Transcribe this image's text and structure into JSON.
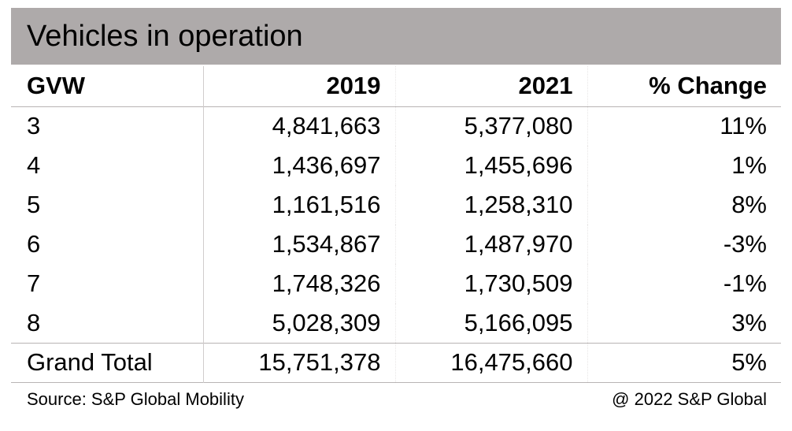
{
  "chart_data": {
    "type": "table",
    "title": "Vehicles in operation",
    "columns": [
      "GVW",
      "2019",
      "2021",
      "% Change"
    ],
    "rows": [
      {
        "gvw": "3",
        "y2019": "4,841,663",
        "y2021": "5,377,080",
        "change": "11%"
      },
      {
        "gvw": "4",
        "y2019": "1,436,697",
        "y2021": "1,455,696",
        "change": "1%"
      },
      {
        "gvw": "5",
        "y2019": "1,161,516",
        "y2021": "1,258,310",
        "change": "8%"
      },
      {
        "gvw": "6",
        "y2019": "1,534,867",
        "y2021": "1,487,970",
        "change": "-3%"
      },
      {
        "gvw": "7",
        "y2019": "1,748,326",
        "y2021": "1,730,509",
        "change": "-1%"
      },
      {
        "gvw": "8",
        "y2019": "5,028,309",
        "y2021": "5,166,095",
        "change": "3%"
      }
    ],
    "total": {
      "label": "Grand Total",
      "y2019": "15,751,378",
      "y2021": "16,475,660",
      "change": "5%"
    },
    "source": "Source: S&P Global Mobility",
    "copyright": "@ 2022 S&P Global"
  },
  "colors": {
    "title_band": "#aeaaaa"
  }
}
